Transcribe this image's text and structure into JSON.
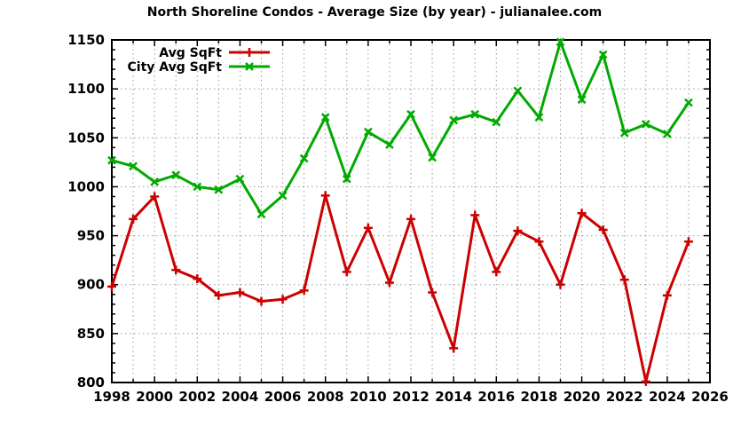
{
  "page": {
    "background": "#ffffff"
  },
  "chart_data": {
    "type": "line",
    "title": "North Shoreline Condos - Average Size (by year) - julianalee.com",
    "xlabel": "",
    "ylabel": "",
    "x_range": [
      1998,
      2026
    ],
    "ylim": [
      800,
      1150
    ],
    "x_tick_step": 2,
    "x_minor_step": 1,
    "y_tick_step": 50,
    "y_minor_step": 10,
    "x_tick_labels": [
      "1998",
      "2000",
      "2002",
      "2004",
      "2006",
      "2008",
      "2010",
      "2012",
      "2014",
      "2016",
      "2018",
      "2020",
      "2022",
      "2024",
      "2026"
    ],
    "y_tick_labels": [
      "800",
      "850",
      "900",
      "950",
      "1000",
      "1050",
      "1100",
      "1150"
    ],
    "grid": "dotted",
    "grid_color": "#9a9a9a",
    "frame_color": "#000000",
    "legend_position": "top-left",
    "x": [
      1998,
      1999,
      2000,
      2001,
      2002,
      2003,
      2004,
      2005,
      2006,
      2007,
      2008,
      2009,
      2010,
      2011,
      2012,
      2013,
      2014,
      2015,
      2016,
      2017,
      2018,
      2019,
      2020,
      2021,
      2022,
      2023,
      2024,
      2025
    ],
    "series": [
      {
        "name": "Avg SqFt",
        "color": "#cc0000",
        "marker": "plus",
        "values": [
          898,
          967,
          990,
          915,
          906,
          889,
          892,
          883,
          885,
          894,
          991,
          913,
          958,
          902,
          967,
          892,
          835,
          971,
          913,
          955,
          944,
          900,
          973,
          956,
          905,
          801,
          889,
          944
        ]
      },
      {
        "name": "City Avg SqFt",
        "color": "#00aa00",
        "marker": "cross",
        "values": [
          1027,
          1021,
          1005,
          1012,
          1000,
          997,
          1008,
          972,
          991,
          1029,
          1071,
          1008,
          1056,
          1043,
          1074,
          1030,
          1068,
          1074,
          1066,
          1098,
          1071,
          1148,
          1089,
          1135,
          1055,
          1064,
          1054,
          1086
        ]
      }
    ]
  }
}
